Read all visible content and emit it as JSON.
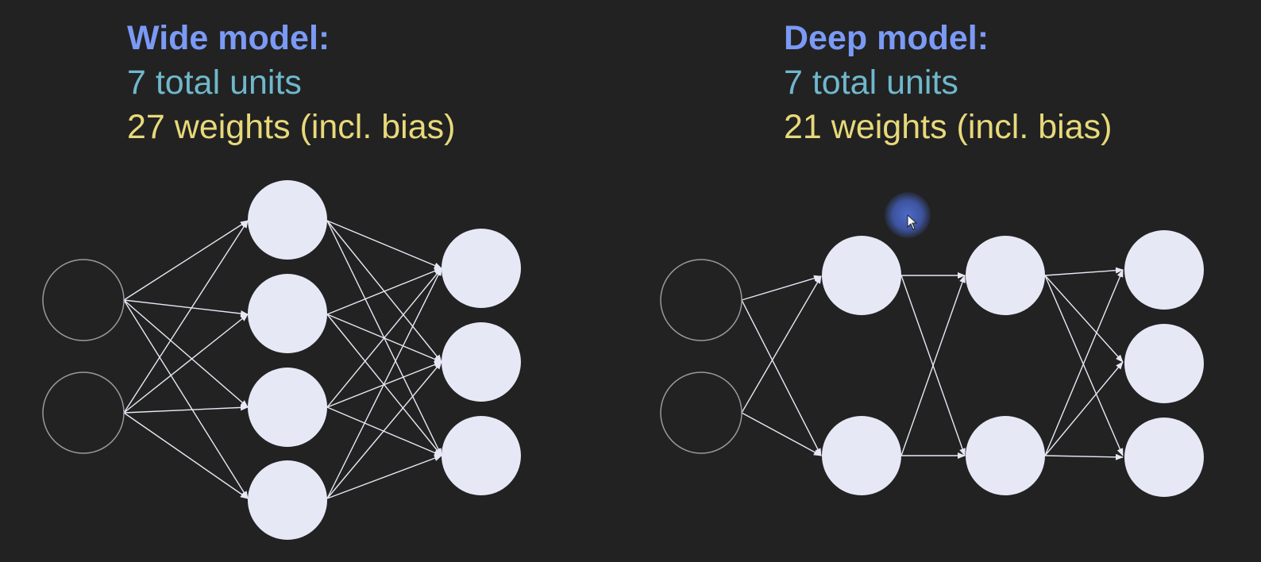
{
  "wide_model": {
    "title": "Wide model:",
    "units": "7 total units",
    "weights": "27 weights (incl. bias)"
  },
  "deep_model": {
    "title": "Deep model:",
    "units": "7 total units",
    "weights": "21 weights (incl. bias)"
  },
  "colors": {
    "background": "#222222",
    "heading": "#7b9af5",
    "units_text": "#6fb8cc",
    "weights_text": "#e8d97a",
    "neuron_fill": "#e6e9f5",
    "input_outline": "#9a9a9a",
    "edge": "#e6e9f5"
  },
  "cursor": {
    "icon": "mouse-pointer-icon"
  }
}
